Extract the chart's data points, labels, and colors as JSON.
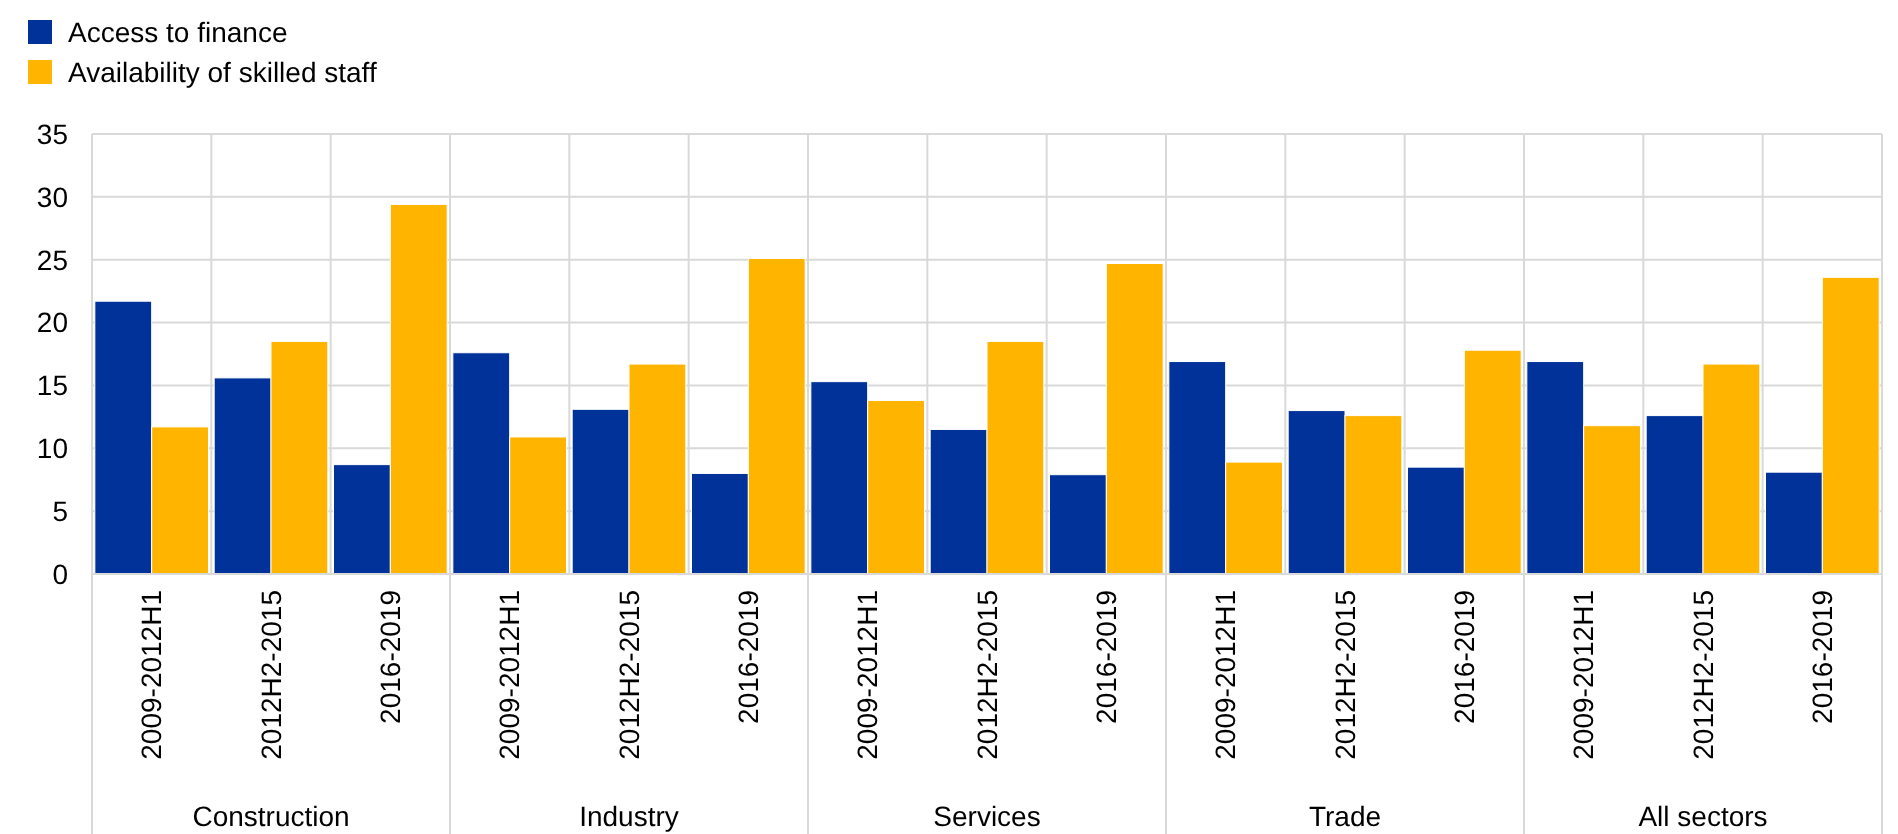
{
  "chart_data": {
    "type": "bar",
    "categories": [
      "2009-2012H1",
      "2012H2-2015",
      "2016-2019",
      "2009-2012H1",
      "2012H2-2015",
      "2016-2019",
      "2009-2012H1",
      "2012H2-2015",
      "2016-2019",
      "2009-2012H1",
      "2012H2-2015",
      "2016-2019",
      "2009-2012H1",
      "2012H2-2015",
      "2016-2019"
    ],
    "series": [
      {
        "name": "Access to finance",
        "color": "#003299",
        "values": [
          21.7,
          15.6,
          8.7,
          17.6,
          13.1,
          8.0,
          15.3,
          11.5,
          7.9,
          16.9,
          13.0,
          8.5,
          16.9,
          12.6,
          8.1
        ]
      },
      {
        "name": "Availability of skilled staff",
        "color": "#ffb400",
        "values": [
          11.7,
          18.5,
          29.4,
          10.9,
          16.7,
          25.1,
          13.8,
          18.5,
          24.7,
          8.9,
          12.6,
          17.8,
          11.8,
          16.7,
          23.6
        ]
      }
    ],
    "annotations": [
      "Construction",
      "Industry",
      "Services",
      "Trade",
      "All sectors"
    ],
    "ylim": [
      0,
      35
    ],
    "yticks": [
      0,
      5,
      10,
      15,
      20,
      25,
      30,
      35
    ],
    "grid": true,
    "legend": "top left"
  }
}
